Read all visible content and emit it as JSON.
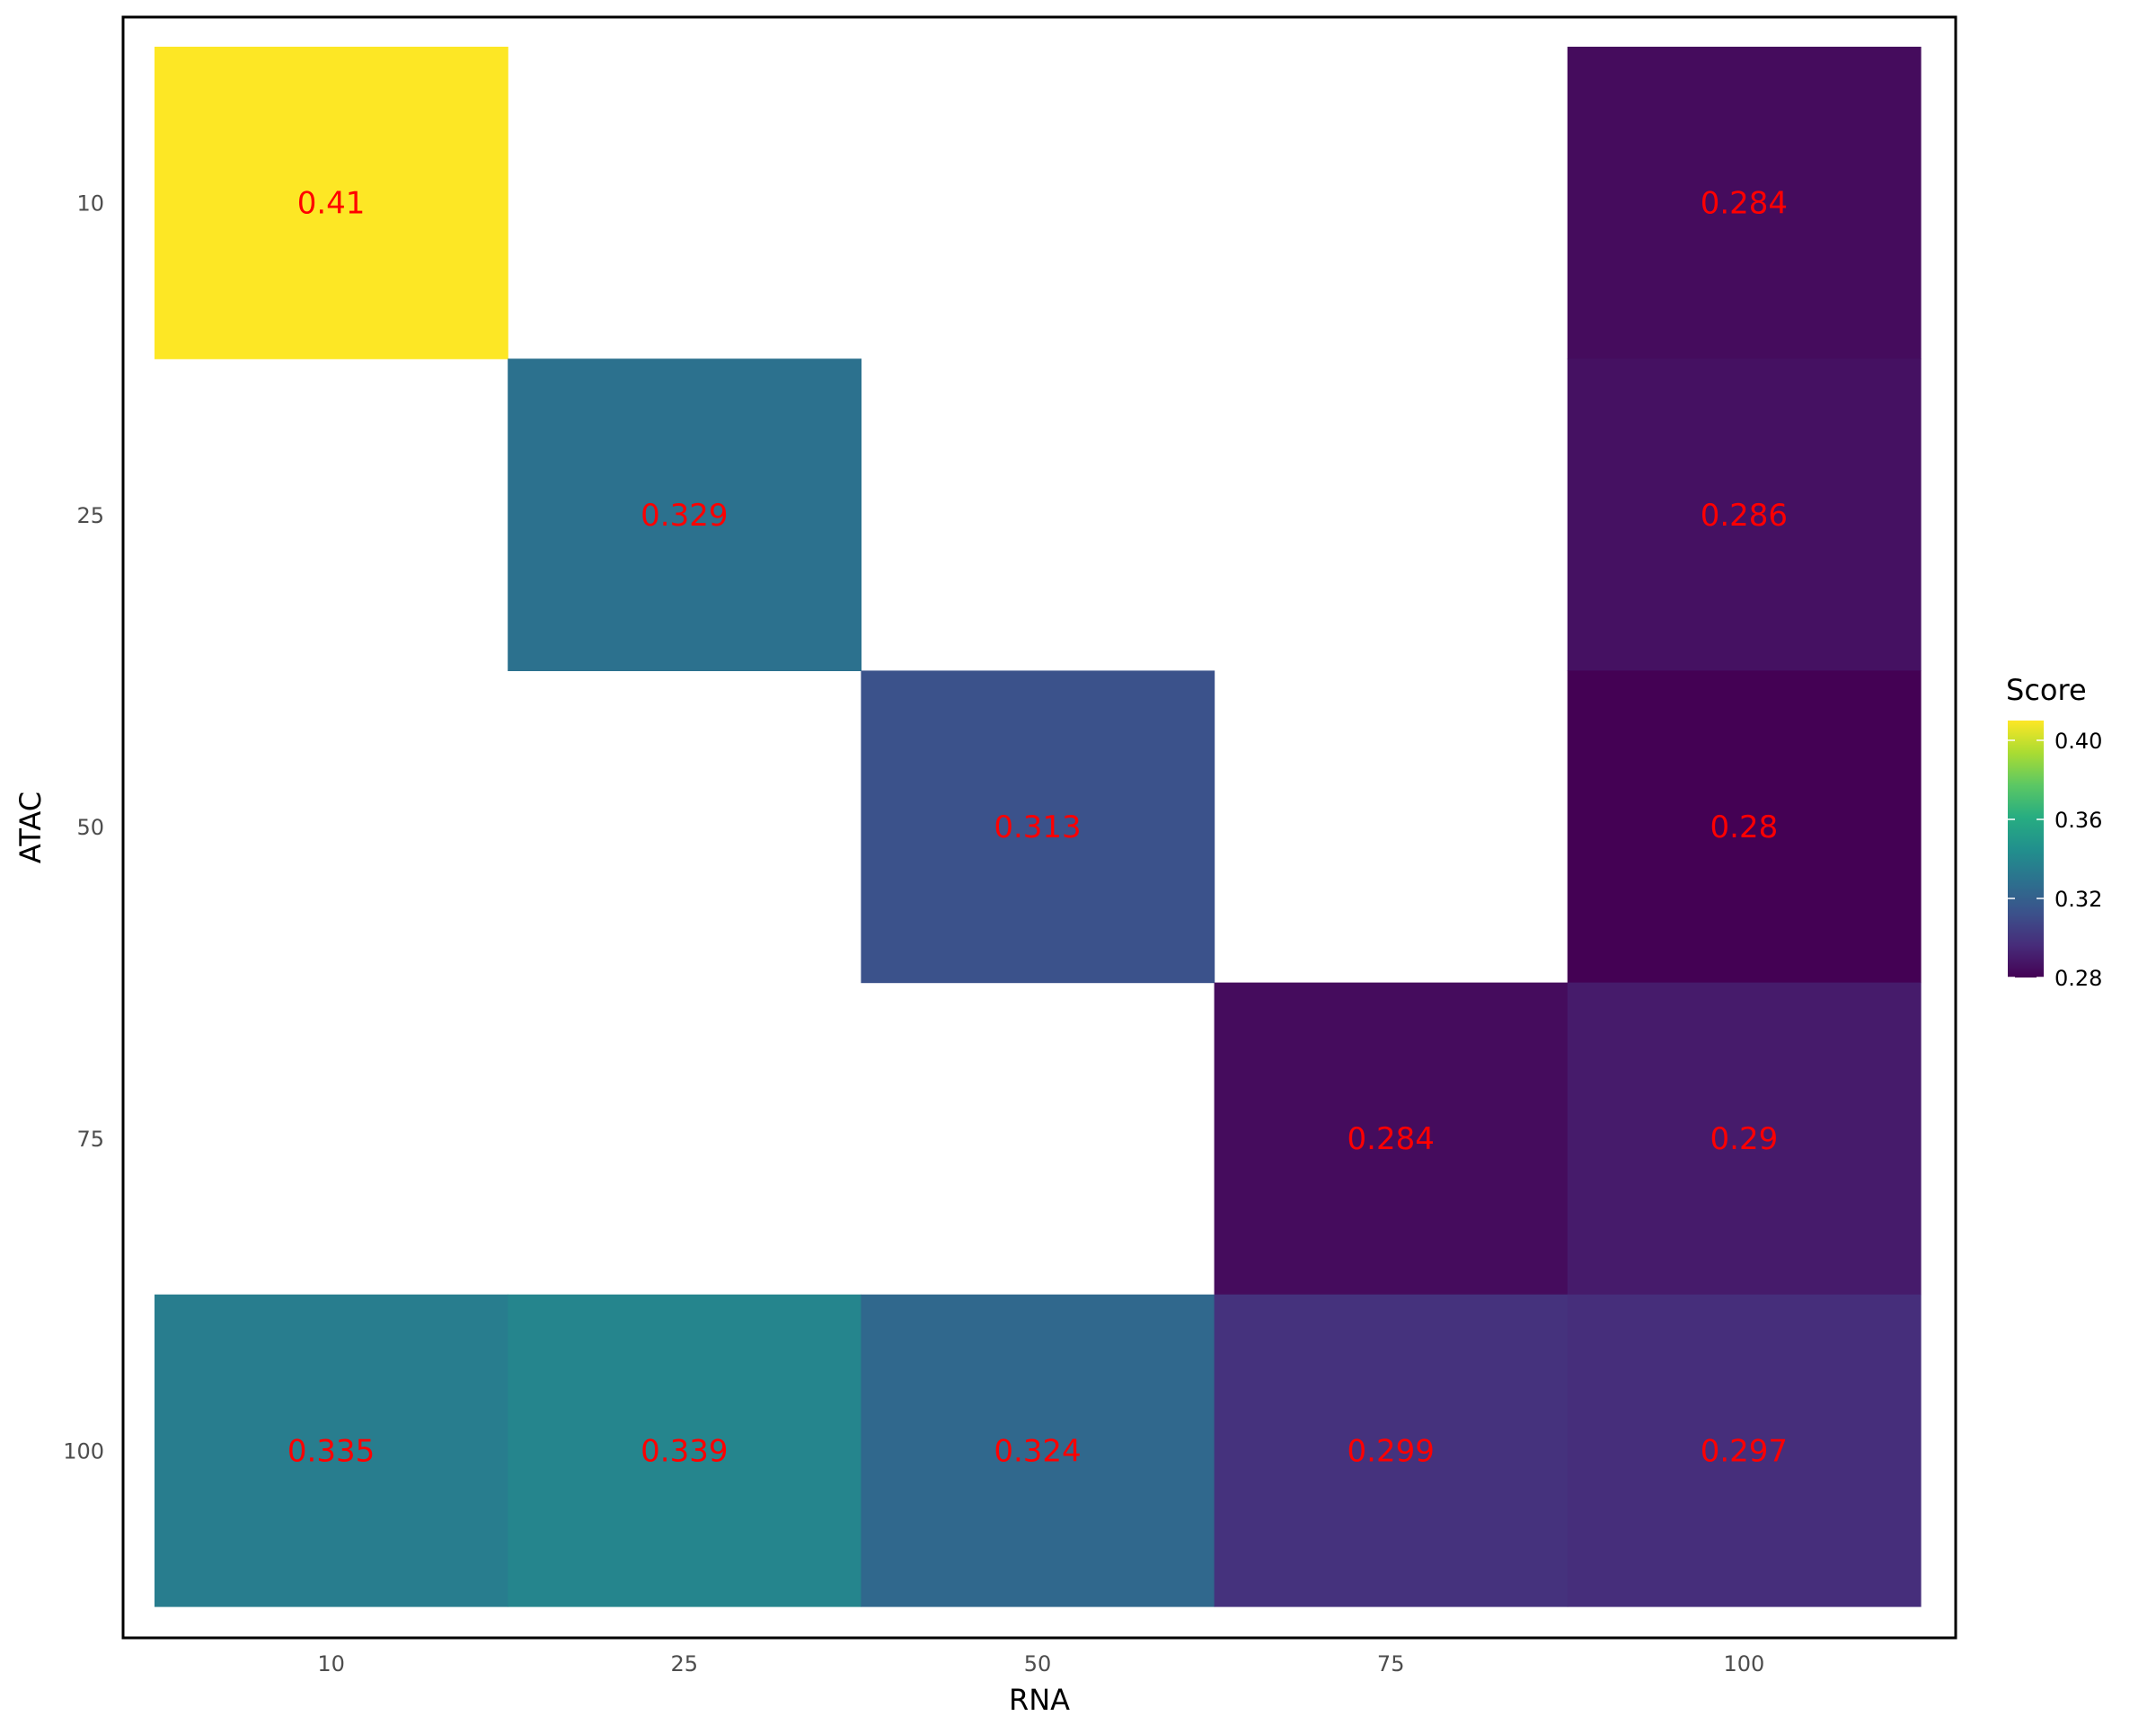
{
  "chart_data": {
    "type": "heatmap",
    "xlabel": "RNA",
    "ylabel": "ATAC",
    "x_categories": [
      "10",
      "25",
      "50",
      "75",
      "100"
    ],
    "y_categories": [
      "10",
      "25",
      "50",
      "75",
      "100"
    ],
    "cells": [
      {
        "x": "10",
        "y": "10",
        "value": 0.41,
        "label": "0.41"
      },
      {
        "x": "100",
        "y": "10",
        "value": 0.284,
        "label": "0.284"
      },
      {
        "x": "25",
        "y": "25",
        "value": 0.329,
        "label": "0.329"
      },
      {
        "x": "100",
        "y": "25",
        "value": 0.286,
        "label": "0.286"
      },
      {
        "x": "50",
        "y": "50",
        "value": 0.313,
        "label": "0.313"
      },
      {
        "x": "100",
        "y": "50",
        "value": 0.28,
        "label": "0.28"
      },
      {
        "x": "75",
        "y": "75",
        "value": 0.284,
        "label": "0.284"
      },
      {
        "x": "100",
        "y": "75",
        "value": 0.29,
        "label": "0.29"
      },
      {
        "x": "10",
        "y": "100",
        "value": 0.335,
        "label": "0.335"
      },
      {
        "x": "25",
        "y": "100",
        "value": 0.339,
        "label": "0.339"
      },
      {
        "x": "50",
        "y": "100",
        "value": 0.324,
        "label": "0.324"
      },
      {
        "x": "75",
        "y": "100",
        "value": 0.299,
        "label": "0.299"
      },
      {
        "x": "100",
        "y": "100",
        "value": 0.297,
        "label": "0.297"
      }
    ],
    "legend": {
      "title": "Score",
      "placement": "right",
      "range": [
        0.28,
        0.41
      ],
      "ticks": [
        {
          "value": 0.28,
          "label": "0.28"
        },
        {
          "value": 0.32,
          "label": "0.32"
        },
        {
          "value": 0.36,
          "label": "0.36"
        },
        {
          "value": 0.4,
          "label": "0.40"
        }
      ]
    },
    "colormap": "viridis",
    "label_color": "#ff0000",
    "grid": false
  }
}
